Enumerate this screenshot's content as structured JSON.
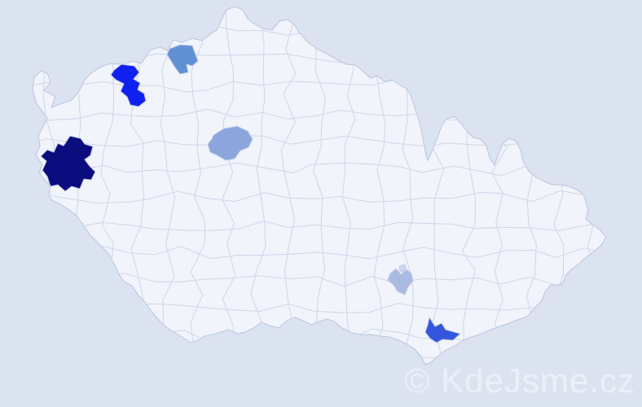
{
  "map": {
    "name": "czech-republic-districts-map",
    "colors": {
      "background": "#dce3f0",
      "land": "#f1f4fa",
      "district_border": "#ccd3eb",
      "country_outline": "#b9c3e0"
    },
    "regions": [
      {
        "id": "district-west-dark-navy",
        "color": "#0b0d7e"
      },
      {
        "id": "district-northwest-bright-blue",
        "color": "#1021ef"
      },
      {
        "id": "district-north-steel-blue",
        "color": "#6090d4"
      },
      {
        "id": "district-central-periwinkle",
        "color": "#8ba6dc"
      },
      {
        "id": "district-southeast-light-blue",
        "color": "#a9bbe0"
      },
      {
        "id": "district-southeast-center-pale",
        "color": "#ccd6ee"
      },
      {
        "id": "district-south-royal-blue",
        "color": "#3356dc"
      }
    ]
  },
  "watermark": {
    "text": "© KdeJsme.cz",
    "color": "#edf1f9"
  }
}
